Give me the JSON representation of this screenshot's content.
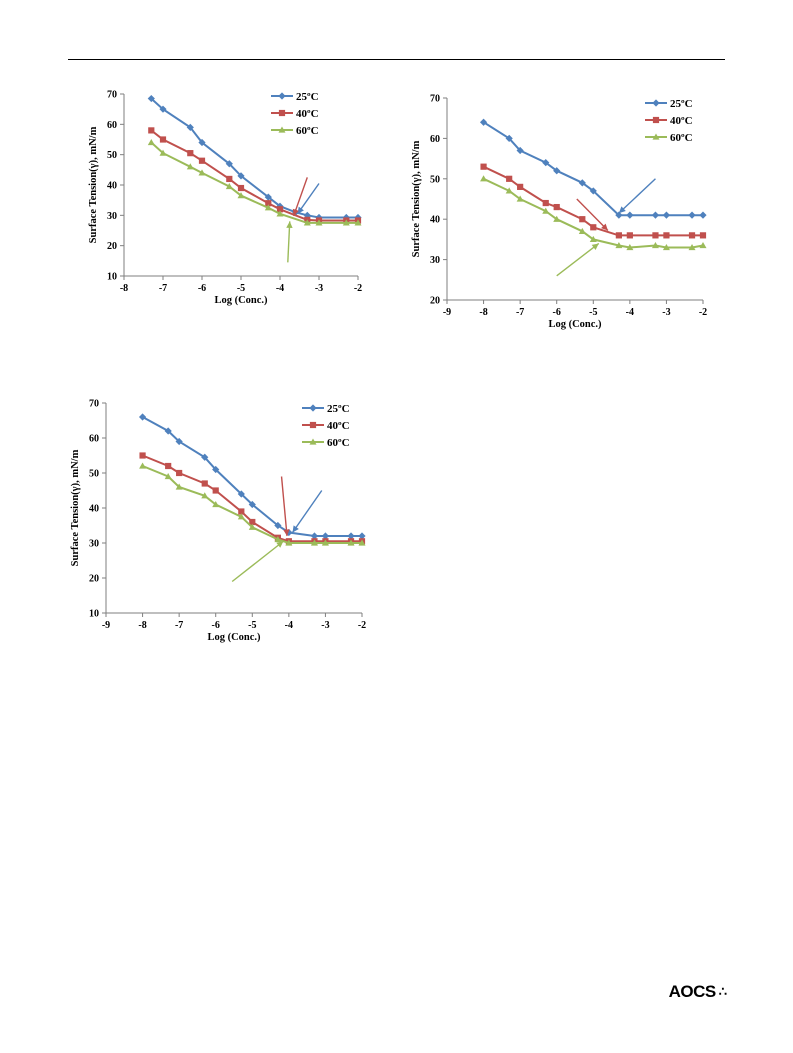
{
  "logo": {
    "text": "AOCS",
    "mark": "∴"
  },
  "charts": [
    {
      "type": "line",
      "xlabel": "Log (Conc.)",
      "ylabel": "Surface Tension(γ), mN/m",
      "xlim": [
        -8,
        -2
      ],
      "ylim": [
        10,
        70
      ],
      "xticks": [
        -8,
        -7,
        -6,
        -5,
        -4,
        -3,
        -2
      ],
      "yticks": [
        10,
        20,
        30,
        40,
        50,
        60,
        70
      ],
      "xtick_labels": [
        "-8",
        "-7",
        "-6",
        "-5",
        "-4",
        "-3",
        "-2"
      ],
      "ytick_labels": [
        "10",
        "20",
        "30",
        "40",
        "50",
        "60",
        "70"
      ],
      "legend_position": "top-right",
      "series": [
        {
          "name": "25ºC",
          "color": "#4f81bd",
          "marker": "diamond",
          "x": [
            -7.3,
            -7.0,
            -6.3,
            -6.0,
            -5.3,
            -5.0,
            -4.3,
            -4.0,
            -3.6,
            -3.3,
            -3.0,
            -2.3,
            -2.0
          ],
          "y": [
            68.5,
            65,
            59,
            54,
            47,
            43,
            36,
            33,
            31,
            30,
            29.3,
            29.3,
            29.3
          ]
        },
        {
          "name": "40ºC",
          "color": "#c0504d",
          "marker": "square",
          "x": [
            -7.3,
            -7.0,
            -6.3,
            -6.0,
            -5.3,
            -5.0,
            -4.3,
            -4.0,
            -3.3,
            -3.0,
            -2.3,
            -2.0
          ],
          "y": [
            58,
            55,
            50.5,
            48,
            42,
            39,
            34,
            32,
            28.5,
            28.3,
            28.3,
            28.3
          ]
        },
        {
          "name": "60ºC",
          "color": "#9bbb59",
          "marker": "triangle",
          "x": [
            -7.3,
            -7.0,
            -6.3,
            -6.0,
            -5.3,
            -5.0,
            -4.3,
            -4.0,
            -3.3,
            -3.0,
            -2.3,
            -2.0
          ],
          "y": [
            54,
            50.5,
            46,
            44,
            39.5,
            36.5,
            32.5,
            30.5,
            27.5,
            27.5,
            27.5,
            27.5
          ]
        }
      ],
      "arrows": [
        {
          "color": "#4f81bd",
          "from": [
            -3.0,
            40.5
          ],
          "to": [
            -3.55,
            30.5
          ]
        },
        {
          "color": "#c0504d",
          "from": [
            -3.3,
            42.5
          ],
          "to": [
            -3.65,
            29.8
          ]
        },
        {
          "color": "#9bbb59",
          "from": [
            -3.8,
            14.5
          ],
          "to": [
            -3.75,
            28.0
          ]
        }
      ]
    },
    {
      "type": "line",
      "xlabel": "Log (Conc.)",
      "ylabel": "Surface Tension(γ), mN/m",
      "xlim": [
        -9,
        -2
      ],
      "ylim": [
        20,
        70
      ],
      "xticks": [
        -9,
        -8,
        -7,
        -6,
        -5,
        -4,
        -3,
        -2
      ],
      "yticks": [
        20,
        30,
        40,
        50,
        60,
        70
      ],
      "xtick_labels": [
        "-9",
        "-8",
        "-7",
        "-6",
        "-5",
        "-4",
        "-3",
        "-2"
      ],
      "ytick_labels": [
        "20",
        "30",
        "40",
        "50",
        "60",
        "70"
      ],
      "legend_position": "top-right",
      "series": [
        {
          "name": "25ºC",
          "color": "#4f81bd",
          "marker": "diamond",
          "x": [
            -8.0,
            -7.3,
            -7.0,
            -6.3,
            -6.0,
            -5.3,
            -5.0,
            -4.3,
            -4.0,
            -3.3,
            -3.0,
            -2.3,
            -2.0
          ],
          "y": [
            64,
            60,
            57,
            54,
            52,
            49,
            47,
            41,
            41,
            41,
            41,
            41,
            41
          ]
        },
        {
          "name": "40ºC",
          "color": "#c0504d",
          "marker": "square",
          "x": [
            -8.0,
            -7.3,
            -7.0,
            -6.3,
            -6.0,
            -5.3,
            -5.0,
            -4.3,
            -4.0,
            -3.3,
            -3.0,
            -2.3,
            -2.0
          ],
          "y": [
            53,
            50,
            48,
            44,
            43,
            40,
            38,
            36,
            36,
            36,
            36,
            36,
            36
          ]
        },
        {
          "name": "60ºC",
          "color": "#9bbb59",
          "marker": "triangle",
          "x": [
            -8.0,
            -7.3,
            -7.0,
            -6.3,
            -6.0,
            -5.3,
            -5.0,
            -4.3,
            -4.0,
            -3.3,
            -3.0,
            -2.3,
            -2.0
          ],
          "y": [
            50,
            47,
            45,
            42,
            40,
            37,
            35,
            33.5,
            33,
            33.5,
            33,
            33,
            33.5
          ]
        }
      ],
      "arrows": [
        {
          "color": "#4f81bd",
          "from": [
            -3.3,
            50
          ],
          "to": [
            -4.3,
            41.5
          ]
        },
        {
          "color": "#c0504d",
          "from": [
            -5.45,
            45
          ],
          "to": [
            -4.6,
            37.2
          ]
        },
        {
          "color": "#9bbb59",
          "from": [
            -6.0,
            26
          ],
          "to": [
            -4.85,
            34.0
          ]
        }
      ]
    },
    {
      "type": "line",
      "xlabel": "Log (Conc.)",
      "ylabel": "Surface Tension(γ), mN/m",
      "xlim": [
        -9,
        -2
      ],
      "ylim": [
        10,
        70
      ],
      "xticks": [
        -9,
        -8,
        -7,
        -6,
        -5,
        -4,
        -3,
        -2
      ],
      "yticks": [
        10,
        20,
        30,
        40,
        50,
        60,
        70
      ],
      "xtick_labels": [
        "-9",
        "-8",
        "-7",
        "-6",
        "-5",
        "-4",
        "-3",
        "-2"
      ],
      "ytick_labels": [
        "10",
        "20",
        "30",
        "40",
        "50",
        "60",
        "70"
      ],
      "legend_position": "top-right",
      "series": [
        {
          "name": "25ºC",
          "color": "#4f81bd",
          "marker": "diamond",
          "x": [
            -8.0,
            -7.3,
            -7.0,
            -6.3,
            -6.0,
            -5.3,
            -5.0,
            -4.3,
            -4.0,
            -3.3,
            -3.0,
            -2.3,
            -2.0
          ],
          "y": [
            66,
            62,
            59,
            54.5,
            51,
            44,
            41,
            35,
            33,
            32,
            32,
            32,
            32
          ]
        },
        {
          "name": "40ºC",
          "color": "#c0504d",
          "marker": "square",
          "x": [
            -8.0,
            -7.3,
            -7.0,
            -6.3,
            -6.0,
            -5.3,
            -5.0,
            -4.3,
            -4.0,
            -3.3,
            -3.0,
            -2.3,
            -2.0
          ],
          "y": [
            55,
            52,
            50,
            47,
            45,
            39,
            36,
            31.5,
            30.5,
            30.5,
            30.5,
            30.5,
            30.5
          ]
        },
        {
          "name": "60ºC",
          "color": "#9bbb59",
          "marker": "triangle",
          "x": [
            -8.0,
            -7.3,
            -7.0,
            -6.3,
            -6.0,
            -5.3,
            -5.0,
            -4.3,
            -4.0,
            -3.3,
            -3.0,
            -2.3,
            -2.0
          ],
          "y": [
            52,
            49,
            46,
            43.5,
            41,
            37.5,
            34.5,
            31,
            30,
            30,
            30,
            30,
            30
          ]
        }
      ],
      "arrows": [
        {
          "color": "#4f81bd",
          "from": [
            -3.1,
            45
          ],
          "to": [
            -3.9,
            33
          ]
        },
        {
          "color": "#c0504d",
          "from": [
            -4.2,
            49
          ],
          "to": [
            -4.05,
            32
          ]
        },
        {
          "color": "#9bbb59",
          "from": [
            -5.55,
            19
          ],
          "to": [
            -4.15,
            30.5
          ]
        }
      ]
    }
  ]
}
